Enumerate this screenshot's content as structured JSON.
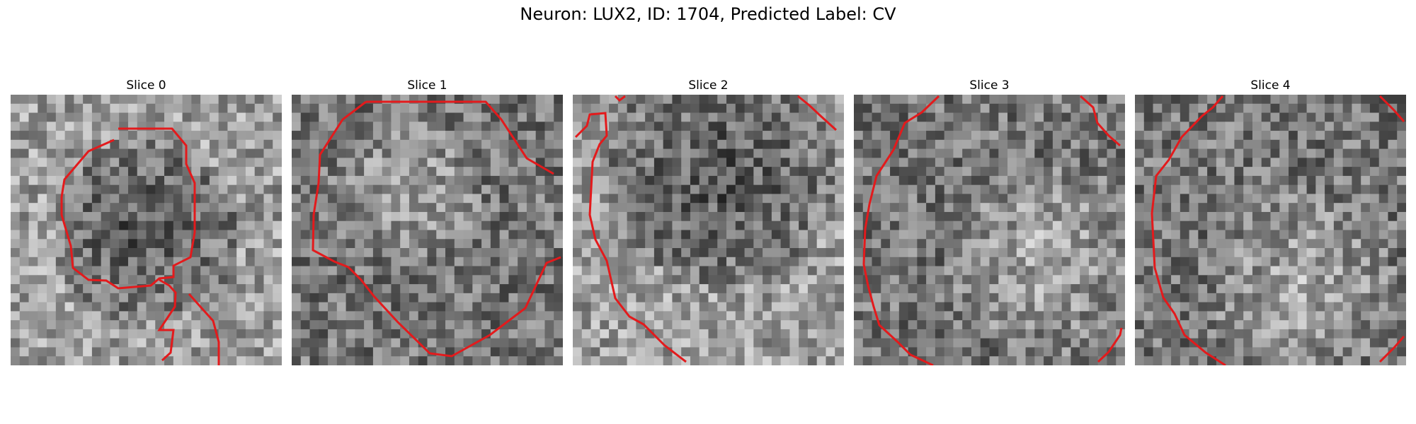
{
  "figure": {
    "title": "Neuron: LUX2, ID: 1704, Predicted Label: CV"
  },
  "panels": [
    {
      "title": "Slice 0"
    },
    {
      "title": "Slice 1"
    },
    {
      "title": "Slice 2"
    },
    {
      "title": "Slice 3"
    },
    {
      "title": "Slice 4"
    }
  ],
  "colors": {
    "contour": "#e31a1c",
    "background": "#ffffff"
  }
}
